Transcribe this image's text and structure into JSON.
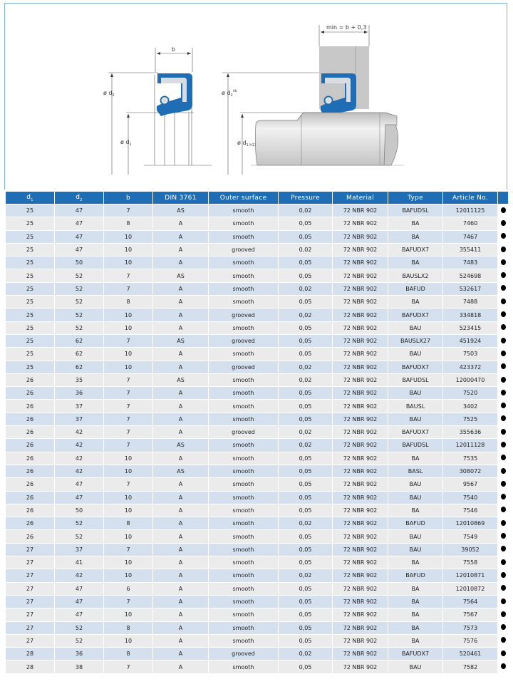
{
  "drawing": {
    "label_b": "b",
    "label_d2": "ø d",
    "label_d2_sub": "2",
    "label_d1": "ø d",
    "label_d1_sub": "1",
    "label_d2_h8": "ø d",
    "label_d2_h8_sub": "2",
    "label_d2_h8_sup": "H8",
    "label_d1_h11": "ø d",
    "label_d1_h11_sub": "1 h11",
    "label_min": "min = b + 0,3",
    "colors": {
      "seal": "#1f6eb5",
      "insert": "#d9dde2",
      "housing": "#c8c8c8",
      "shaft": "#dcdcdc"
    }
  },
  "table": {
    "headers": [
      {
        "main": "d",
        "sub": "1"
      },
      {
        "main": "d",
        "sub": "2"
      },
      {
        "main": "b",
        "sub": ""
      },
      {
        "main": "DIN 3761",
        "sub": ""
      },
      {
        "main": "Outer surface",
        "sub": ""
      },
      {
        "main": "Pressure",
        "sub": ""
      },
      {
        "main": "Material",
        "sub": ""
      },
      {
        "main": "Type",
        "sub": ""
      },
      {
        "main": "Article No.",
        "sub": ""
      },
      {
        "main": "",
        "sub": ""
      }
    ],
    "availability_icon": "filled-circle",
    "header_color": "#1f6eb5",
    "row_colors": [
      "#d5e0ef",
      "#ebebeb"
    ],
    "rows": [
      [
        "25",
        "47",
        "7",
        "AS",
        "smooth",
        "0,02",
        "72 NBR 902",
        "BAFUDSL",
        "12011125"
      ],
      [
        "25",
        "47",
        "8",
        "A",
        "smooth",
        "0,05",
        "72 NBR 902",
        "BA",
        "7460"
      ],
      [
        "25",
        "47",
        "10",
        "A",
        "smooth",
        "0,05",
        "72 NBR 902",
        "BA",
        "7467"
      ],
      [
        "25",
        "47",
        "10",
        "A",
        "grooved",
        "0,02",
        "72 NBR 902",
        "BAFUDX7",
        "355411"
      ],
      [
        "25",
        "50",
        "10",
        "A",
        "smooth",
        "0,05",
        "72 NBR 902",
        "BA",
        "7483"
      ],
      [
        "25",
        "52",
        "7",
        "AS",
        "smooth",
        "0,05",
        "72 NBR 902",
        "BAUSLX2",
        "524698"
      ],
      [
        "25",
        "52",
        "7",
        "A",
        "smooth",
        "0,02",
        "72 NBR 902",
        "BAFUD",
        "532617"
      ],
      [
        "25",
        "52",
        "8",
        "A",
        "smooth",
        "0,05",
        "72 NBR 902",
        "BA",
        "7488"
      ],
      [
        "25",
        "52",
        "10",
        "A",
        "grooved",
        "0,02",
        "72 NBR 902",
        "BAFUDX7",
        "334818"
      ],
      [
        "25",
        "52",
        "10",
        "A",
        "smooth",
        "0,05",
        "72 NBR 902",
        "BAU",
        "523415"
      ],
      [
        "25",
        "62",
        "7",
        "AS",
        "grooved",
        "0,05",
        "72 NBR 902",
        "BAUSLX27",
        "451924"
      ],
      [
        "25",
        "62",
        "10",
        "A",
        "smooth",
        "0,05",
        "72 NBR 902",
        "BAU",
        "7503"
      ],
      [
        "25",
        "62",
        "10",
        "A",
        "grooved",
        "0,02",
        "72 NBR 902",
        "BAFUDX7",
        "423372"
      ],
      [
        "26",
        "35",
        "7",
        "AS",
        "smooth",
        "0,02",
        "72 NBR 902",
        "BAFUDSL",
        "12000470"
      ],
      [
        "26",
        "36",
        "7",
        "A",
        "smooth",
        "0,05",
        "72 NBR 902",
        "BAU",
        "7520"
      ],
      [
        "26",
        "37",
        "7",
        "A",
        "smooth",
        "0,05",
        "72 NBR 902",
        "BAUSL",
        "3402"
      ],
      [
        "26",
        "37",
        "7",
        "A",
        "smooth",
        "0,05",
        "72 NBR 902",
        "BAU",
        "7525"
      ],
      [
        "26",
        "42",
        "7",
        "A",
        "grooved",
        "0,02",
        "72 NBR 902",
        "BAFUDX7",
        "355636"
      ],
      [
        "26",
        "42",
        "7",
        "AS",
        "smooth",
        "0,02",
        "72 NBR 902",
        "BAFUDSL",
        "12011128"
      ],
      [
        "26",
        "42",
        "10",
        "A",
        "smooth",
        "0,05",
        "72 NBR 902",
        "BA",
        "7535"
      ],
      [
        "26",
        "42",
        "10",
        "AS",
        "smooth",
        "0,05",
        "72 NBR 902",
        "BASL",
        "308072"
      ],
      [
        "26",
        "47",
        "7",
        "A",
        "smooth",
        "0,05",
        "72 NBR 902",
        "BAU",
        "9567"
      ],
      [
        "26",
        "47",
        "10",
        "A",
        "smooth",
        "0,05",
        "72 NBR 902",
        "BAU",
        "7540"
      ],
      [
        "26",
        "50",
        "10",
        "A",
        "smooth",
        "0,05",
        "72 NBR 902",
        "BA",
        "7546"
      ],
      [
        "26",
        "52",
        "8",
        "A",
        "smooth",
        "0,02",
        "72 NBR 902",
        "BAFUD",
        "12010869"
      ],
      [
        "26",
        "52",
        "10",
        "A",
        "smooth",
        "0,05",
        "72 NBR 902",
        "BAU",
        "7549"
      ],
      [
        "27",
        "37",
        "7",
        "A",
        "smooth",
        "0,05",
        "72 NBR 902",
        "BAU",
        "39052"
      ],
      [
        "27",
        "41",
        "10",
        "A",
        "smooth",
        "0,05",
        "72 NBR 902",
        "BA",
        "7558"
      ],
      [
        "27",
        "42",
        "10",
        "A",
        "smooth",
        "0,02",
        "72 NBR 902",
        "BAFUD",
        "12010871"
      ],
      [
        "27",
        "47",
        "6",
        "A",
        "smooth",
        "0,05",
        "72 NBR 902",
        "BA",
        "12010872"
      ],
      [
        "27",
        "47",
        "7",
        "A",
        "smooth",
        "0,05",
        "72 NBR 902",
        "BA",
        "7564"
      ],
      [
        "27",
        "47",
        "10",
        "A",
        "smooth",
        "0,05",
        "72 NBR 902",
        "BA",
        "7567"
      ],
      [
        "27",
        "52",
        "8",
        "A",
        "smooth",
        "0,05",
        "72 NBR 902",
        "BA",
        "7573"
      ],
      [
        "27",
        "52",
        "10",
        "A",
        "smooth",
        "0,05",
        "72 NBR 902",
        "BA",
        "7576"
      ],
      [
        "28",
        "36",
        "8",
        "A",
        "grooved",
        "0,02",
        "72 NBR 902",
        "BAFUDX7",
        "520461"
      ],
      [
        "28",
        "38",
        "7",
        "A",
        "smooth",
        "0,05",
        "72 NBR 902",
        "BAU",
        "7582"
      ]
    ]
  }
}
